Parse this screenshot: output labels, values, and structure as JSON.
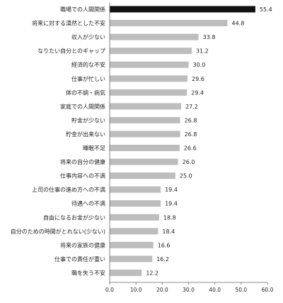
{
  "chart_data": {
    "type": "bar",
    "orientation": "horizontal",
    "categories": [
      "職場での人間関係",
      "将来に対する漠然とした不安",
      "収入が少ない",
      "なりたい自分とのギャップ",
      "経済的な不安",
      "仕事が忙しい",
      "体の不調・病気",
      "家庭での人間関係",
      "貯金が少ない",
      "貯金が出来ない",
      "睡眠不足",
      "将来の自分の健康",
      "仕事内容への不満",
      "上司の仕事の進め方への不満",
      "待遇への不満",
      "自由になるお金が少ない",
      "自分のための時間がとれない(少ない)",
      "将来の家族の健康",
      "仕事での責任が重い",
      "職を失う不安"
    ],
    "values": [
      55.4,
      44.8,
      33.8,
      31.2,
      30.0,
      29.6,
      29.4,
      27.2,
      26.8,
      26.8,
      26.6,
      26.0,
      25.0,
      19.4,
      19.4,
      18.8,
      18.4,
      16.6,
      16.2,
      12.2
    ],
    "value_labels": [
      "55.4",
      "44.8",
      "33.8",
      "31.2",
      "30.0",
      "29.6",
      "29.4",
      "27.2",
      "26.8",
      "26.8",
      "26.6",
      "26.0",
      "25.0",
      "19.4",
      "19.4",
      "18.8",
      "18.4",
      "16.6",
      "16.2",
      "12.2"
    ],
    "xlim": [
      0,
      60
    ],
    "xticks": [
      0,
      10,
      20,
      30,
      40,
      50,
      60
    ],
    "xtick_labels": [
      "0.0",
      "10.0",
      "20.0",
      "30.0",
      "40.0",
      "50.0",
      "60.0"
    ],
    "grid": false,
    "colors": {
      "highlight": "#111111",
      "bar": "#bdbdbd",
      "axis": "#666666",
      "text": "#222222"
    },
    "highlight_index": 0
  }
}
